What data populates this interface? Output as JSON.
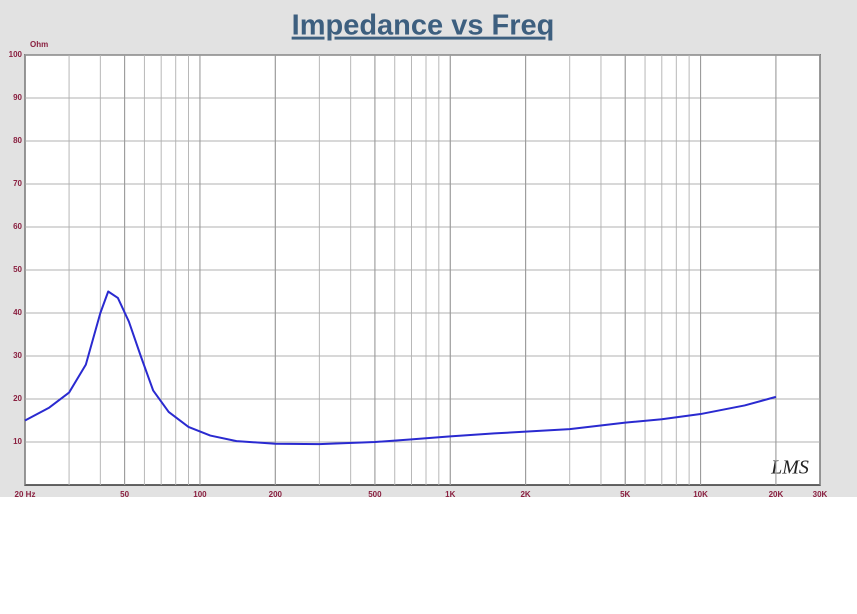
{
  "chart_data": {
    "type": "line",
    "title": "Impedance vs Freq",
    "y_label": "Ohm",
    "watermark": "LMS",
    "x": [
      20,
      25,
      30,
      35,
      40,
      43,
      47,
      52,
      58,
      65,
      75,
      90,
      110,
      140,
      200,
      300,
      500,
      700,
      1000,
      1500,
      2000,
      3000,
      5000,
      7000,
      10000,
      15000,
      20000
    ],
    "values": [
      15,
      18,
      21.5,
      28,
      40,
      45,
      43.5,
      38,
      30,
      22,
      17,
      13.5,
      11.5,
      10.2,
      9.6,
      9.5,
      10,
      10.6,
      11.3,
      12,
      12.4,
      13,
      14.5,
      15.3,
      16.5,
      18.5,
      20.5
    ],
    "color": "#2a2ad0",
    "xscale": "log",
    "grid": true,
    "xlim": [
      20,
      30000
    ],
    "ylim": [
      0,
      100
    ],
    "xticks": [
      {
        "value": 20,
        "label": "20 Hz"
      },
      50,
      100,
      200,
      500,
      {
        "value": 1000,
        "label": "1K"
      },
      {
        "value": 2000,
        "label": "2K"
      },
      {
        "value": 5000,
        "label": "5K"
      },
      {
        "value": 10000,
        "label": "10K"
      },
      {
        "value": 20000,
        "label": "20K"
      },
      {
        "value": 30000,
        "label": "30K"
      }
    ],
    "yticks": [
      10,
      20,
      30,
      40,
      50,
      60,
      70,
      80,
      90,
      100
    ]
  }
}
